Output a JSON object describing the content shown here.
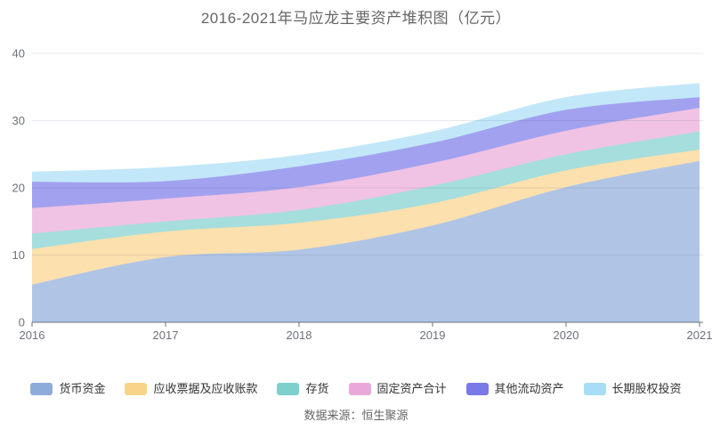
{
  "page": {
    "title": "2016-2021年马应龙主要资产堆积图（亿元）",
    "source_note": "数据来源：恒生聚源"
  },
  "chart_data": {
    "type": "area",
    "stacked": true,
    "smooth": true,
    "title": "2016-2021年马应龙主要资产堆积图（亿元）",
    "unit": "亿元",
    "categories": [
      "2016",
      "2017",
      "2018",
      "2019",
      "2020",
      "2021"
    ],
    "series": [
      {
        "name": "货币资金",
        "color": "#8EACDA",
        "values": [
          5.6,
          9.7,
          10.8,
          14.4,
          20.1,
          24.0
        ]
      },
      {
        "name": "应收票据及应收账款",
        "color": "#FAD38B",
        "values": [
          5.3,
          3.8,
          4.0,
          3.3,
          2.5,
          1.7
        ]
      },
      {
        "name": "存货",
        "color": "#7FD0CD",
        "values": [
          2.3,
          1.5,
          1.9,
          2.6,
          2.4,
          2.7
        ]
      },
      {
        "name": "固定资产合计",
        "color": "#E9A9D8",
        "values": [
          3.8,
          3.4,
          3.4,
          3.4,
          3.5,
          3.5
        ]
      },
      {
        "name": "其他流动资产",
        "color": "#7A79E8",
        "values": [
          3.9,
          2.6,
          3.1,
          3.0,
          3.1,
          1.6
        ]
      },
      {
        "name": "长期股权投资",
        "color": "#A8DDF6",
        "values": [
          1.5,
          2.1,
          1.7,
          1.7,
          1.9,
          2.1
        ]
      }
    ],
    "totals": [
      22.4,
      23.1,
      24.9,
      28.4,
      33.5,
      35.6
    ],
    "ylim": [
      0,
      40
    ],
    "yticks": [
      0,
      10,
      20,
      30,
      40
    ],
    "grid": true,
    "legend_position": "bottom",
    "area_opacity": 0.7,
    "axis_color": "#6E7079",
    "label_color": "#6E7079",
    "grid_line_color": "#39456E",
    "grid_line_opacity": 0.12
  }
}
